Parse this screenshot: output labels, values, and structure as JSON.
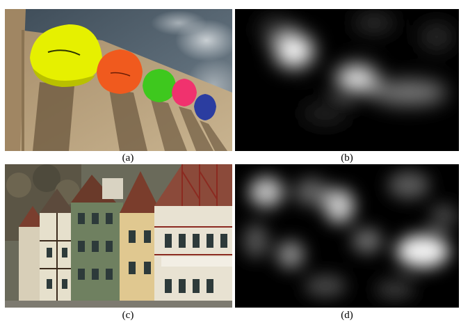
{
  "panels": [
    {
      "label": "(a)"
    },
    {
      "label": "(b)"
    },
    {
      "label": "(c)"
    },
    {
      "label": "(d)"
    }
  ],
  "colors": {
    "sky": "#4f5e6a",
    "wall": "#b09a78",
    "cap_yellow": "#e6f000",
    "cap_orange": "#f05a1e",
    "cap_green": "#3ec81e",
    "cap_pink": "#f0326e",
    "cap_blue": "#2b3da0",
    "saliency_bg": "#000000",
    "saliency_hot": "#ffffff"
  }
}
